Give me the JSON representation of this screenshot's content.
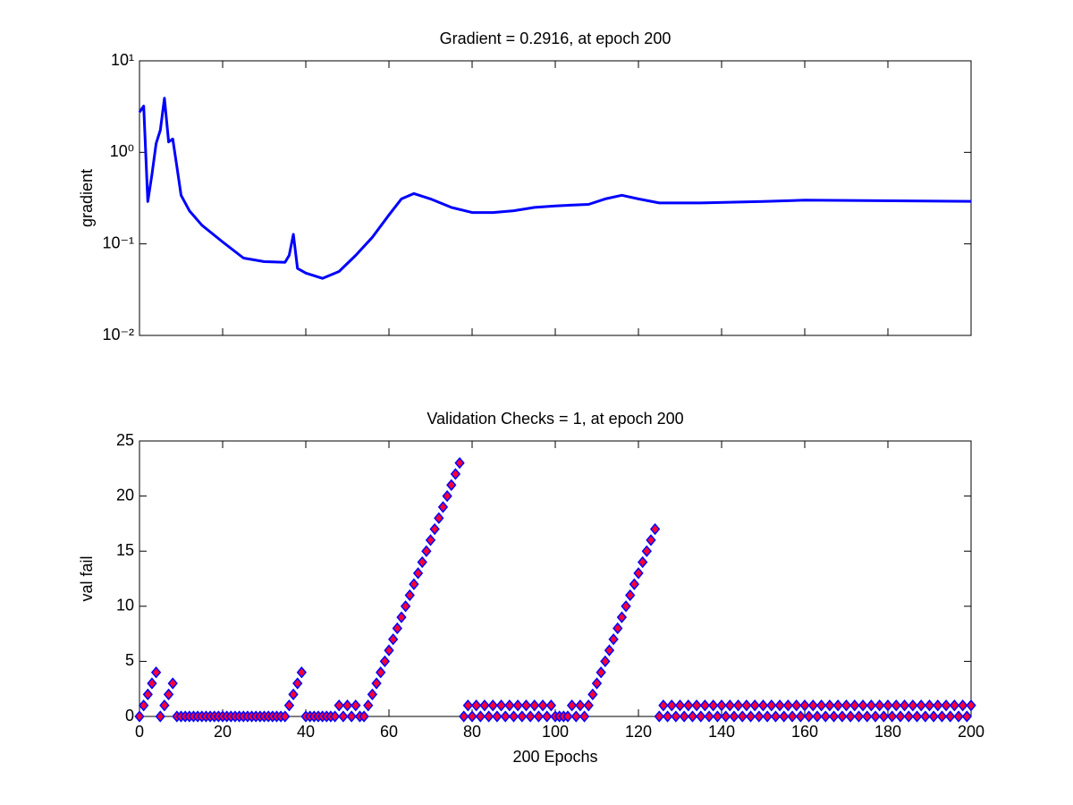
{
  "chart_data": [
    {
      "type": "line",
      "title": "Gradient = 0.2916, at epoch 200",
      "ylabel": "gradient",
      "log_y": true,
      "x": [
        0,
        1,
        2,
        3,
        4,
        5,
        6,
        7,
        8,
        9,
        10,
        12,
        15,
        20,
        25,
        30,
        35,
        36,
        37,
        38,
        40,
        44,
        48,
        52,
        56,
        60,
        63,
        66,
        70,
        75,
        80,
        85,
        90,
        95,
        100,
        108,
        112,
        116,
        120,
        125,
        135,
        150,
        160,
        200
      ],
      "values": [
        2.75,
        3.2,
        0.29,
        0.57,
        1.25,
        1.75,
        3.9,
        1.3,
        1.4,
        0.7,
        0.34,
        0.23,
        0.16,
        0.105,
        0.07,
        0.064,
        0.063,
        0.075,
        0.127,
        0.054,
        0.048,
        0.042,
        0.05,
        0.075,
        0.118,
        0.207,
        0.31,
        0.355,
        0.31,
        0.25,
        0.22,
        0.22,
        0.23,
        0.25,
        0.26,
        0.27,
        0.31,
        0.34,
        0.31,
        0.28,
        0.28,
        0.29,
        0.3,
        0.2916
      ],
      "color": "#0000ff",
      "xlim": [
        0,
        200
      ],
      "xticks": [
        0,
        20,
        40,
        60,
        80,
        100,
        120,
        140,
        160,
        180,
        200
      ],
      "show_xtick_labels": false,
      "ylim": [
        0.01,
        10
      ],
      "yticks": [
        {
          "value": 0.01,
          "label": "10⁻²"
        },
        {
          "value": 0.1,
          "label": "10⁻¹"
        },
        {
          "value": 1,
          "label": "10⁰"
        },
        {
          "value": 10,
          "label": "10¹"
        }
      ]
    },
    {
      "type": "scatter",
      "title": "Validation Checks = 1, at epoch 200",
      "xlabel": "200 Epochs",
      "ylabel": "val fail",
      "x": [
        0,
        1,
        2,
        3,
        4,
        5,
        6,
        7,
        8,
        9,
        10,
        11,
        12,
        13,
        14,
        15,
        16,
        17,
        18,
        19,
        20,
        21,
        22,
        23,
        24,
        25,
        26,
        27,
        28,
        29,
        30,
        31,
        32,
        33,
        34,
        35,
        36,
        37,
        38,
        39,
        40,
        41,
        42,
        43,
        44,
        45,
        46,
        47,
        48,
        49,
        50,
        51,
        52,
        53,
        54,
        55,
        56,
        57,
        58,
        59,
        60,
        61,
        62,
        63,
        64,
        65,
        66,
        67,
        68,
        69,
        70,
        71,
        72,
        73,
        74,
        75,
        76,
        77,
        78,
        79,
        80,
        81,
        82,
        83,
        84,
        85,
        86,
        87,
        88,
        89,
        90,
        91,
        92,
        93,
        94,
        95,
        96,
        97,
        98,
        99,
        100,
        101,
        102,
        103,
        104,
        105,
        106,
        107,
        108,
        109,
        110,
        111,
        112,
        113,
        114,
        115,
        116,
        117,
        118,
        119,
        120,
        121,
        122,
        123,
        124,
        125,
        126,
        127,
        128,
        129,
        130,
        131,
        132,
        133,
        134,
        135,
        136,
        137,
        138,
        139,
        140,
        141,
        142,
        143,
        144,
        145,
        146,
        147,
        148,
        149,
        150,
        151,
        152,
        153,
        154,
        155,
        156,
        157,
        158,
        159,
        160,
        161,
        162,
        163,
        164,
        165,
        166,
        167,
        168,
        169,
        170,
        171,
        172,
        173,
        174,
        175,
        176,
        177,
        178,
        179,
        180,
        181,
        182,
        183,
        184,
        185,
        186,
        187,
        188,
        189,
        190,
        191,
        192,
        193,
        194,
        195,
        196,
        197,
        198,
        199,
        200
      ],
      "values": [
        0,
        1,
        2,
        3,
        4,
        0,
        1,
        2,
        3,
        0,
        0,
        0,
        0,
        0,
        0,
        0,
        0,
        0,
        0,
        0,
        0,
        0,
        0,
        0,
        0,
        0,
        0,
        0,
        0,
        0,
        0,
        0,
        0,
        0,
        0,
        0,
        1,
        2,
        3,
        4,
        0,
        0,
        0,
        0,
        0,
        0,
        0,
        0,
        1,
        0,
        1,
        0,
        1,
        0,
        0,
        1,
        2,
        3,
        4,
        5,
        6,
        7,
        8,
        9,
        10,
        11,
        12,
        13,
        14,
        15,
        16,
        17,
        18,
        19,
        20,
        21,
        22,
        23,
        0,
        1,
        0,
        1,
        0,
        1,
        0,
        1,
        0,
        1,
        0,
        1,
        0,
        1,
        0,
        1,
        0,
        1,
        0,
        1,
        0,
        1,
        0,
        0,
        0,
        0,
        1,
        0,
        1,
        0,
        1,
        2,
        3,
        4,
        5,
        6,
        7,
        8,
        9,
        10,
        11,
        12,
        13,
        14,
        15,
        16,
        17,
        0,
        1,
        0,
        1,
        0,
        1,
        0,
        1,
        0,
        1,
        0,
        1,
        0,
        1,
        0,
        1,
        0,
        1,
        0,
        1,
        0,
        1,
        0,
        1,
        0,
        1,
        0,
        1,
        0,
        1,
        0,
        1,
        0,
        1,
        0,
        1,
        0,
        1,
        0,
        1,
        0,
        1,
        0,
        1,
        0,
        1,
        0,
        1,
        0,
        1,
        0,
        1,
        0,
        1,
        0,
        1,
        0,
        1,
        0,
        1,
        0,
        1,
        0,
        1,
        0,
        1,
        0,
        1,
        0,
        1,
        0,
        1,
        0,
        1,
        0,
        1
      ],
      "color": "#0000ff",
      "marker_fill": "#ff0033",
      "xlim": [
        0,
        200
      ],
      "xticks": [
        0,
        20,
        40,
        60,
        80,
        100,
        120,
        140,
        160,
        180,
        200
      ],
      "show_xtick_labels": true,
      "ylim": [
        0,
        25
      ],
      "yticks": [
        0,
        5,
        10,
        15,
        20,
        25
      ]
    }
  ]
}
